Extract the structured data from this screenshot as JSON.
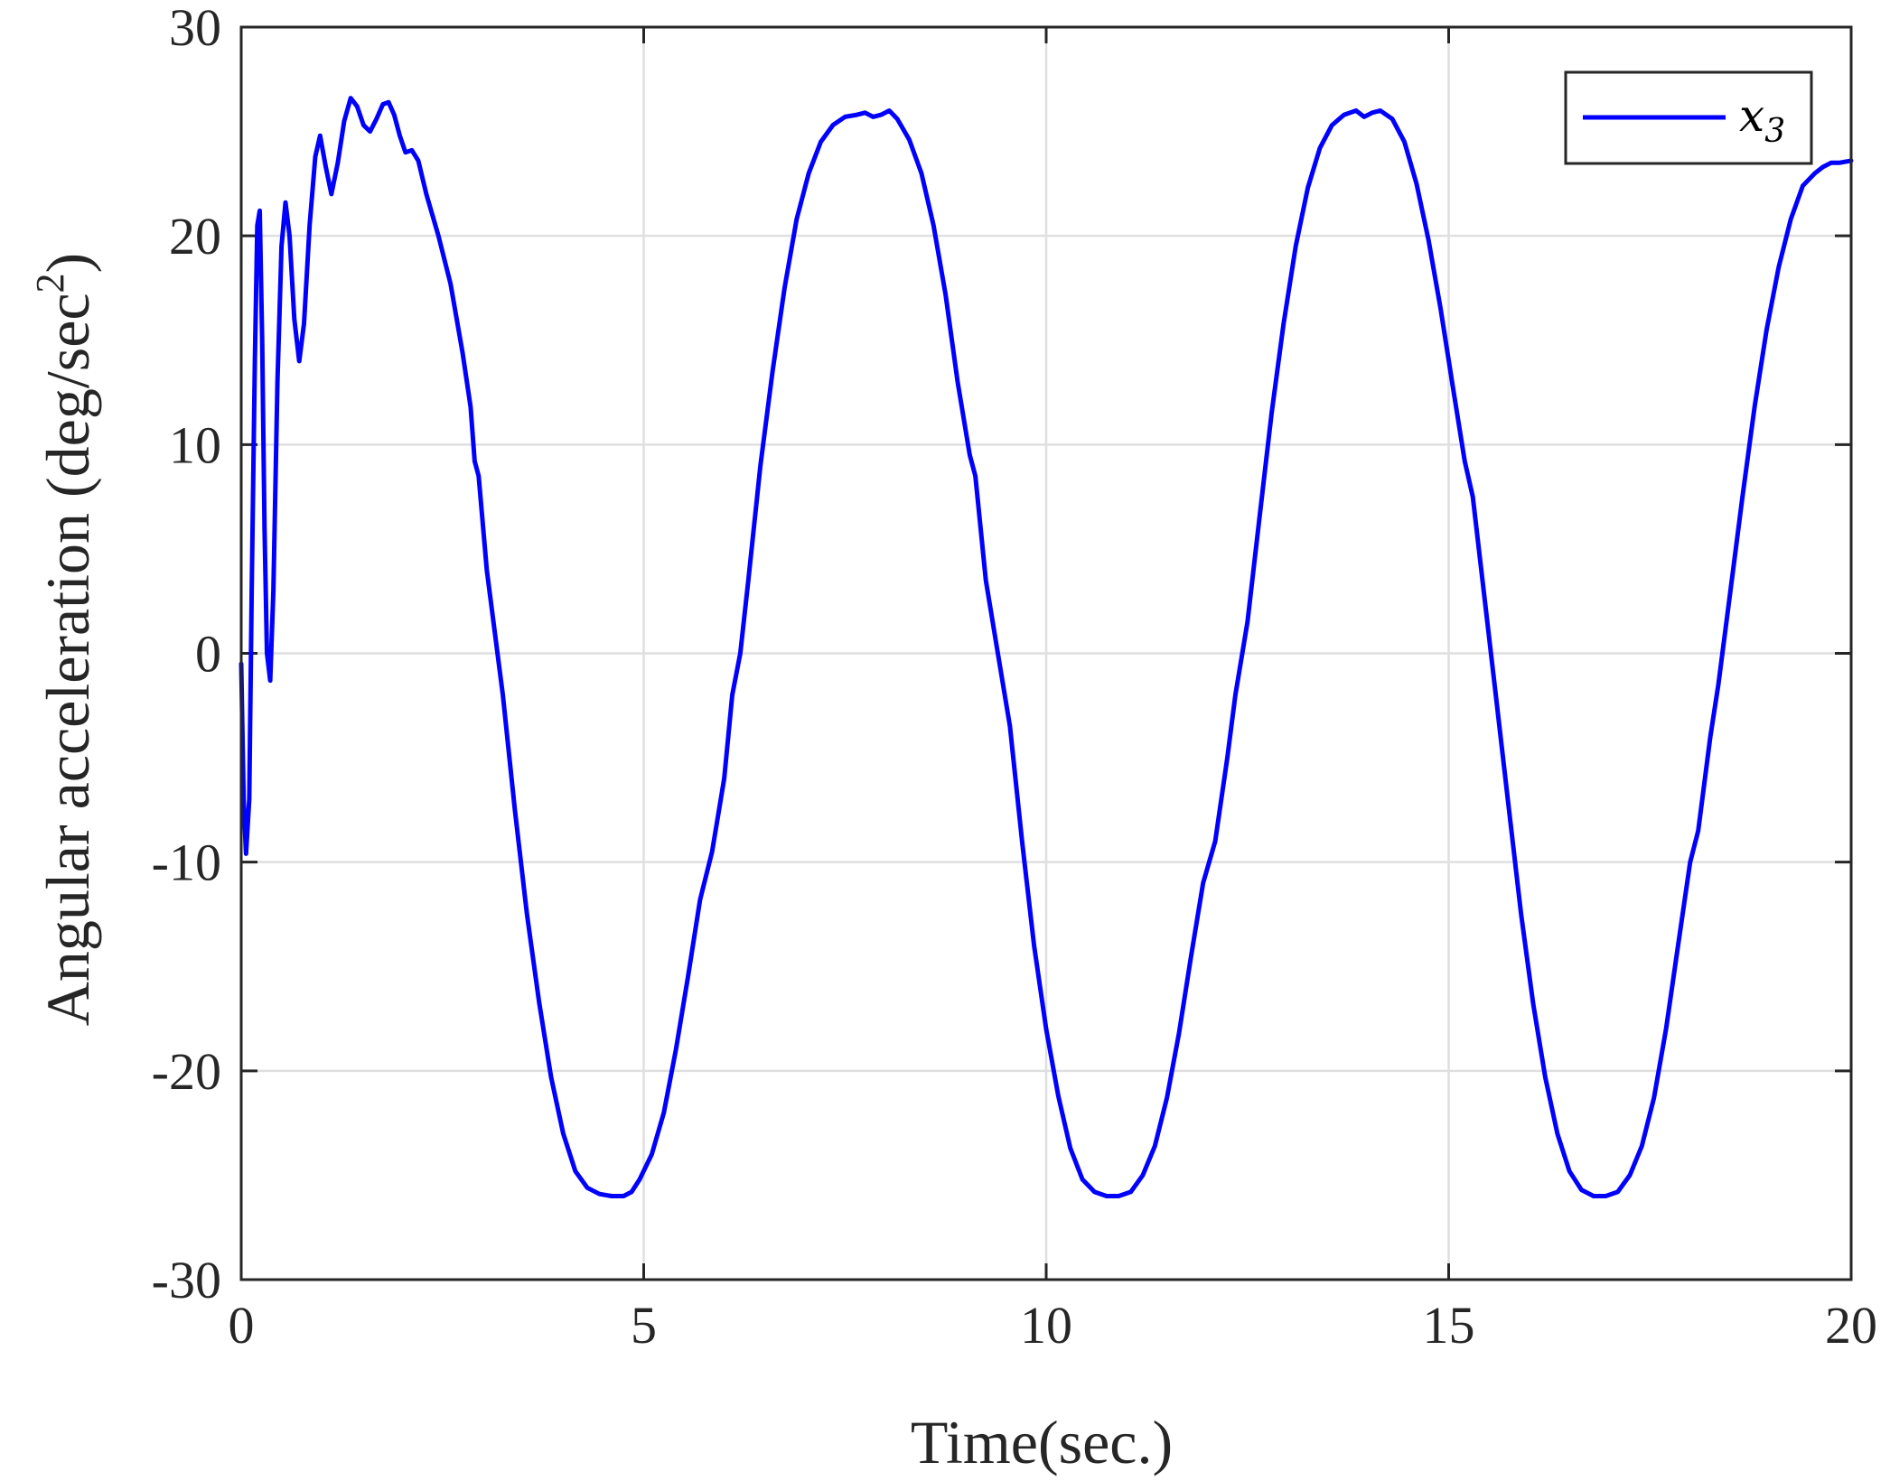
{
  "chart_data": {
    "type": "line",
    "title": "",
    "xlabel": "Time(sec.)",
    "ylabel": {
      "main": "Angular acceleration (deg/sec",
      "superscript": "2",
      "close": ")"
    },
    "xlim": [
      0,
      20
    ],
    "ylim": [
      -30,
      30
    ],
    "xticks": [
      0,
      5,
      10,
      15,
      20
    ],
    "yticks": [
      -30,
      -20,
      -10,
      0,
      10,
      20,
      30
    ],
    "xtick_labels": [
      "0",
      "5",
      "10",
      "15",
      "20"
    ],
    "ytick_labels": [
      "-30",
      "-20",
      "-10",
      "0",
      "10",
      "20",
      "30"
    ],
    "grid": true,
    "legend_position": "top-right",
    "legend": {
      "symbol": "x",
      "subscript": "3"
    },
    "colors": {
      "series": "#0000ff",
      "grid": "#dfdfdf",
      "axes": "#262626",
      "legend_border": "#262626"
    },
    "series": [
      {
        "points": [
          [
            0.0,
            -0.5
          ],
          [
            0.03,
            -7.0
          ],
          [
            0.06,
            -9.6
          ],
          [
            0.1,
            -7.0
          ],
          [
            0.13,
            3.0
          ],
          [
            0.17,
            14.0
          ],
          [
            0.2,
            20.5
          ],
          [
            0.23,
            21.2
          ],
          [
            0.26,
            15.0
          ],
          [
            0.29,
            6.0
          ],
          [
            0.32,
            0.0
          ],
          [
            0.36,
            -1.3
          ],
          [
            0.4,
            3.0
          ],
          [
            0.45,
            13.0
          ],
          [
            0.5,
            19.5
          ],
          [
            0.55,
            21.6
          ],
          [
            0.6,
            20.0
          ],
          [
            0.66,
            16.0
          ],
          [
            0.72,
            14.0
          ],
          [
            0.78,
            15.8
          ],
          [
            0.85,
            20.5
          ],
          [
            0.92,
            23.8
          ],
          [
            0.98,
            24.8
          ],
          [
            1.05,
            23.3
          ],
          [
            1.12,
            22.0
          ],
          [
            1.2,
            23.5
          ],
          [
            1.28,
            25.5
          ],
          [
            1.36,
            26.6
          ],
          [
            1.44,
            26.2
          ],
          [
            1.52,
            25.3
          ],
          [
            1.6,
            25.0
          ],
          [
            1.68,
            25.6
          ],
          [
            1.76,
            26.3
          ],
          [
            1.83,
            26.4
          ],
          [
            1.9,
            25.8
          ],
          [
            1.97,
            24.8
          ],
          [
            2.04,
            24.0
          ],
          [
            2.12,
            24.1
          ],
          [
            2.2,
            23.6
          ],
          [
            2.3,
            22.0
          ],
          [
            2.45,
            20.0
          ],
          [
            2.6,
            17.7
          ],
          [
            2.75,
            14.4
          ],
          [
            2.85,
            11.8
          ],
          [
            2.9,
            9.2
          ],
          [
            2.95,
            8.5
          ],
          [
            3.05,
            4.0
          ],
          [
            3.15,
            1.0
          ],
          [
            3.25,
            -2.0
          ],
          [
            3.4,
            -7.5
          ],
          [
            3.55,
            -12.5
          ],
          [
            3.7,
            -16.7
          ],
          [
            3.85,
            -20.3
          ],
          [
            4.0,
            -23.0
          ],
          [
            4.15,
            -24.8
          ],
          [
            4.3,
            -25.6
          ],
          [
            4.45,
            -25.9
          ],
          [
            4.6,
            -26.0
          ],
          [
            4.75,
            -26.0
          ],
          [
            4.85,
            -25.8
          ],
          [
            4.95,
            -25.2
          ],
          [
            5.1,
            -24.0
          ],
          [
            5.25,
            -22.0
          ],
          [
            5.4,
            -19.0
          ],
          [
            5.55,
            -15.5
          ],
          [
            5.7,
            -11.8
          ],
          [
            5.85,
            -9.5
          ],
          [
            6.0,
            -6.0
          ],
          [
            6.1,
            -2.0
          ],
          [
            6.2,
            0.0
          ],
          [
            6.3,
            3.5
          ],
          [
            6.45,
            9.0
          ],
          [
            6.6,
            13.5
          ],
          [
            6.75,
            17.5
          ],
          [
            6.9,
            20.8
          ],
          [
            7.05,
            23.0
          ],
          [
            7.2,
            24.5
          ],
          [
            7.35,
            25.3
          ],
          [
            7.5,
            25.7
          ],
          [
            7.65,
            25.8
          ],
          [
            7.75,
            25.9
          ],
          [
            7.85,
            25.7
          ],
          [
            7.95,
            25.8
          ],
          [
            8.05,
            26.0
          ],
          [
            8.15,
            25.6
          ],
          [
            8.3,
            24.6
          ],
          [
            8.45,
            23.0
          ],
          [
            8.6,
            20.5
          ],
          [
            8.75,
            17.2
          ],
          [
            8.9,
            13.0
          ],
          [
            9.05,
            9.5
          ],
          [
            9.12,
            8.5
          ],
          [
            9.25,
            3.5
          ],
          [
            9.4,
            0.0
          ],
          [
            9.55,
            -3.5
          ],
          [
            9.7,
            -9.0
          ],
          [
            9.85,
            -14.0
          ],
          [
            10.0,
            -18.0
          ],
          [
            10.15,
            -21.2
          ],
          [
            10.3,
            -23.7
          ],
          [
            10.45,
            -25.2
          ],
          [
            10.6,
            -25.8
          ],
          [
            10.75,
            -26.0
          ],
          [
            10.9,
            -26.0
          ],
          [
            11.05,
            -25.8
          ],
          [
            11.2,
            -25.0
          ],
          [
            11.35,
            -23.6
          ],
          [
            11.5,
            -21.3
          ],
          [
            11.65,
            -18.2
          ],
          [
            11.8,
            -14.5
          ],
          [
            11.95,
            -11.0
          ],
          [
            12.1,
            -9.0
          ],
          [
            12.25,
            -5.0
          ],
          [
            12.35,
            -2.0
          ],
          [
            12.5,
            1.5
          ],
          [
            12.65,
            6.5
          ],
          [
            12.8,
            11.5
          ],
          [
            12.95,
            15.8
          ],
          [
            13.1,
            19.5
          ],
          [
            13.25,
            22.3
          ],
          [
            13.4,
            24.2
          ],
          [
            13.55,
            25.3
          ],
          [
            13.7,
            25.8
          ],
          [
            13.85,
            26.0
          ],
          [
            13.95,
            25.7
          ],
          [
            14.05,
            25.9
          ],
          [
            14.15,
            26.0
          ],
          [
            14.3,
            25.6
          ],
          [
            14.45,
            24.5
          ],
          [
            14.6,
            22.5
          ],
          [
            14.75,
            19.8
          ],
          [
            14.9,
            16.5
          ],
          [
            15.05,
            12.8
          ],
          [
            15.2,
            9.2
          ],
          [
            15.3,
            7.5
          ],
          [
            15.45,
            2.5
          ],
          [
            15.6,
            -2.5
          ],
          [
            15.75,
            -7.5
          ],
          [
            15.9,
            -12.5
          ],
          [
            16.05,
            -16.8
          ],
          [
            16.2,
            -20.3
          ],
          [
            16.35,
            -23.0
          ],
          [
            16.5,
            -24.8
          ],
          [
            16.65,
            -25.7
          ],
          [
            16.8,
            -26.0
          ],
          [
            16.95,
            -26.0
          ],
          [
            17.1,
            -25.8
          ],
          [
            17.25,
            -25.0
          ],
          [
            17.4,
            -23.6
          ],
          [
            17.55,
            -21.3
          ],
          [
            17.7,
            -18.0
          ],
          [
            17.85,
            -14.0
          ],
          [
            18.0,
            -10.0
          ],
          [
            18.1,
            -8.5
          ],
          [
            18.25,
            -4.0
          ],
          [
            18.35,
            -1.5
          ],
          [
            18.5,
            3.0
          ],
          [
            18.65,
            7.5
          ],
          [
            18.8,
            11.8
          ],
          [
            18.95,
            15.5
          ],
          [
            19.1,
            18.5
          ],
          [
            19.25,
            20.8
          ],
          [
            19.4,
            22.4
          ],
          [
            19.55,
            23.0
          ],
          [
            19.65,
            23.3
          ],
          [
            19.75,
            23.5
          ],
          [
            19.85,
            23.5
          ],
          [
            20.0,
            23.6
          ]
        ]
      }
    ]
  }
}
